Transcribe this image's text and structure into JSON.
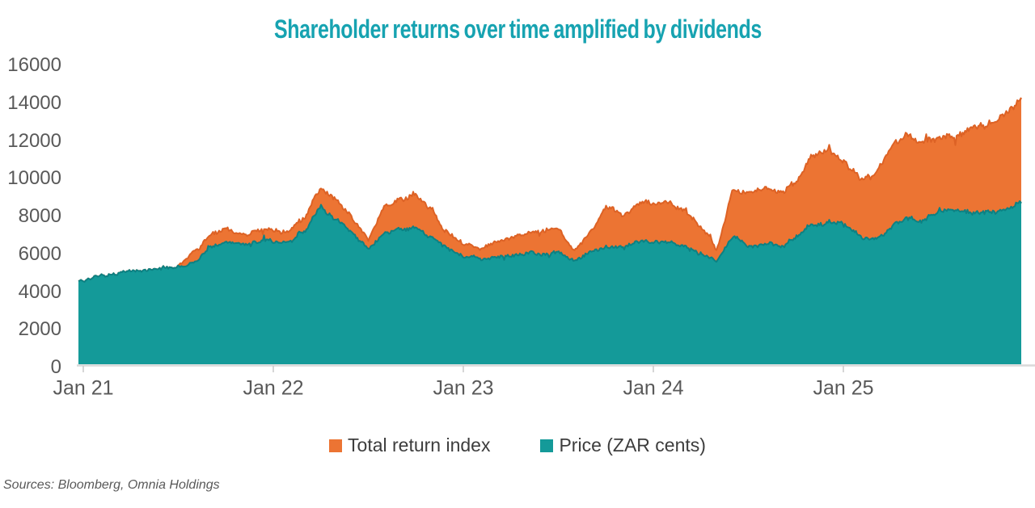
{
  "source_note": "Sources: Bloomberg, Omnia Holdings",
  "colors": {
    "title": "#17A3B1",
    "total_return_fill": "#EC7433",
    "total_return_edge": "#DD6225",
    "price_fill": "#149A99",
    "price_edge": "#0D8183",
    "axis_text": "#595959",
    "legend_text": "#3d3d3d",
    "axis_line": "#D9D9D9",
    "axis_tick": "#C8C8C8"
  },
  "chart_data": {
    "type": "area",
    "title": "Shareholder returns over time amplified by dividends",
    "xlabel": "",
    "ylabel": "",
    "ylim": [
      0,
      16000
    ],
    "y_ticks": [
      0,
      2000,
      4000,
      6000,
      8000,
      10000,
      12000,
      14000,
      16000
    ],
    "x_tick_labels": [
      "Jan 21",
      "Jan 22",
      "Jan 23",
      "Jan 24",
      "Jan 25"
    ],
    "grid": false,
    "legend_position": "bottom",
    "months": [
      "Jan 21",
      "Feb 21",
      "Mar 21",
      "Apr 21",
      "May 21",
      "Jun 21",
      "Jul 21",
      "Aug 21",
      "Sep 21",
      "Oct 21",
      "Nov 21",
      "Dec 21",
      "Jan 22",
      "Feb 22",
      "Mar 22",
      "Apr 22",
      "May 22",
      "Jun 22",
      "Jul 22",
      "Aug 22",
      "Sep 22",
      "Oct 22",
      "Nov 22",
      "Dec 22",
      "Jan 23",
      "Feb 23",
      "Mar 23",
      "Apr 23",
      "May 23",
      "Jun 23",
      "Jul 23",
      "Aug 23",
      "Sep 23",
      "Oct 23",
      "Nov 23",
      "Dec 23",
      "Jan 24",
      "Feb 24",
      "Mar 24",
      "Apr 24",
      "May 24",
      "Jun 24",
      "Jul 24",
      "Aug 24",
      "Sep 24",
      "Oct 24",
      "Nov 24",
      "Dec 24",
      "Jan 25",
      "Feb 25",
      "Mar 25",
      "Apr 25",
      "May 25",
      "Jun 25",
      "Jul 25",
      "Aug 25",
      "Sep 25",
      "Oct 25",
      "Nov 25",
      "Dec 25"
    ],
    "series": [
      {
        "name": "Total return index",
        "color": "#EC7433",
        "edge_color": "#DD6225",
        "values": [
          4400,
          4700,
          4800,
          4850,
          5000,
          5100,
          5200,
          5900,
          6800,
          7150,
          7000,
          7050,
          7000,
          7100,
          7700,
          9300,
          8800,
          7700,
          6600,
          8300,
          8700,
          9000,
          8300,
          7000,
          6300,
          6100,
          6500,
          6600,
          6900,
          7000,
          7200,
          6000,
          6900,
          8300,
          8000,
          8500,
          8500,
          8400,
          8200,
          7400,
          6000,
          9200,
          8900,
          9300,
          9200,
          9700,
          10800,
          11400,
          10800,
          9800,
          10000,
          11300,
          12100,
          11700,
          11800,
          11900,
          12300,
          12800,
          13300,
          14000
        ]
      },
      {
        "name": "Price (ZAR cents)",
        "color": "#149A99",
        "edge_color": "#0D8183",
        "values": [
          4400,
          4700,
          4800,
          4850,
          5000,
          5100,
          5150,
          5300,
          6100,
          6450,
          6400,
          6500,
          6450,
          6500,
          7000,
          8400,
          7800,
          6800,
          6100,
          6900,
          7100,
          7200,
          6800,
          6100,
          5700,
          5500,
          5800,
          5700,
          5900,
          5800,
          5900,
          5400,
          5900,
          6200,
          6300,
          6400,
          6400,
          6300,
          6300,
          5900,
          5400,
          6800,
          6200,
          6300,
          6300,
          6700,
          7300,
          7600,
          7500,
          6700,
          6600,
          7200,
          7700,
          7600,
          8000,
          8100,
          7900,
          8100,
          8200,
          8500
        ]
      }
    ]
  }
}
